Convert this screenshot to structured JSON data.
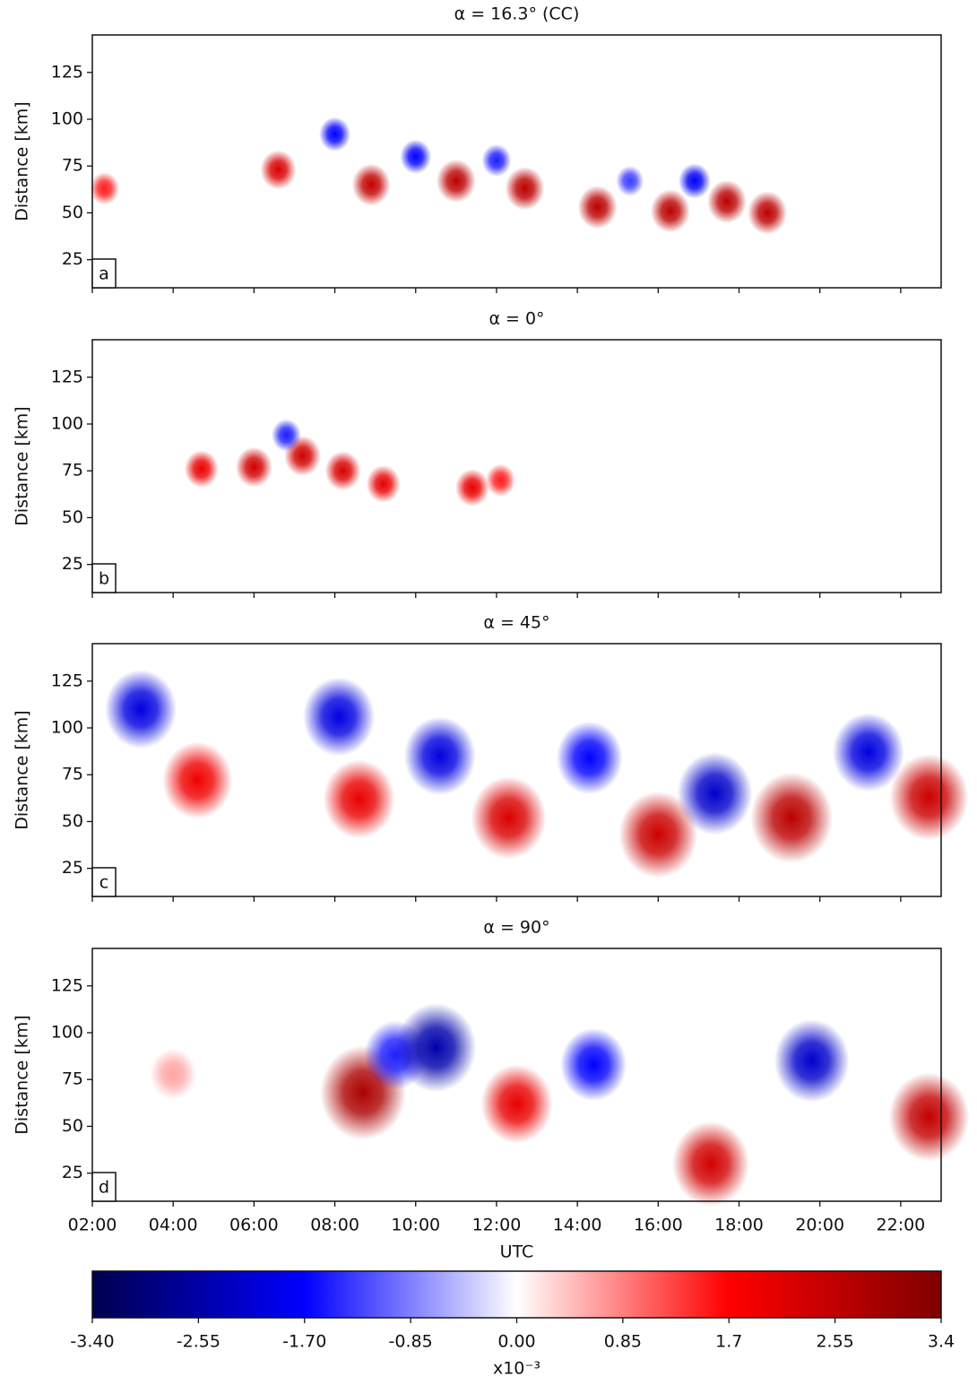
{
  "chart_data": [
    {
      "type": "vortex-field",
      "title": "α = 16.3° (CC)",
      "panel_label": "a",
      "ylabel": "Distance [km]",
      "xlim": [
        2,
        23
      ],
      "ylim": [
        10,
        145
      ],
      "colormap": "seismic",
      "clim": [
        -3.4,
        3.4
      ],
      "xticks": [
        {
          "value": 2,
          "label": "02:00"
        },
        {
          "value": 4,
          "label": "04:00"
        },
        {
          "value": 6,
          "label": "06:00"
        },
        {
          "value": 8,
          "label": "08:00"
        },
        {
          "value": 10,
          "label": "10:00"
        },
        {
          "value": 12,
          "label": "12:00"
        },
        {
          "value": 14,
          "label": "14:00"
        },
        {
          "value": 16,
          "label": "16:00"
        },
        {
          "value": 18,
          "label": "18:00"
        },
        {
          "value": 20,
          "label": "20:00"
        },
        {
          "value": 22,
          "label": "22:00"
        }
      ],
      "yticks": [
        25,
        50,
        75,
        100,
        125
      ],
      "x": [
        2.3,
        6.6,
        8.9,
        11.0,
        12.7,
        14.5,
        16.3,
        17.7,
        18.7,
        8.0,
        10.0,
        12.0,
        15.3,
        16.9
      ],
      "y": [
        63,
        73,
        65,
        67,
        63,
        53,
        51,
        56,
        50,
        92,
        80,
        78,
        67,
        67
      ],
      "values": [
        1.5,
        2.2,
        2.5,
        2.6,
        2.6,
        2.6,
        2.6,
        2.6,
        2.6,
        -1.7,
        -1.7,
        -1.5,
        -1.3,
        -1.8
      ]
    },
    {
      "type": "vortex-field",
      "title": "α = 0°",
      "panel_label": "b",
      "ylabel": "Distance [km]",
      "xlim": [
        2,
        23
      ],
      "ylim": [
        10,
        145
      ],
      "colormap": "seismic",
      "clim": [
        -3.4,
        3.4
      ],
      "xticks": [
        {
          "value": 2,
          "label": "02:00"
        },
        {
          "value": 4,
          "label": "04:00"
        },
        {
          "value": 6,
          "label": "06:00"
        },
        {
          "value": 8,
          "label": "08:00"
        },
        {
          "value": 10,
          "label": "10:00"
        },
        {
          "value": 12,
          "label": "12:00"
        },
        {
          "value": 14,
          "label": "14:00"
        },
        {
          "value": 16,
          "label": "16:00"
        },
        {
          "value": 18,
          "label": "18:00"
        },
        {
          "value": 20,
          "label": "20:00"
        },
        {
          "value": 22,
          "label": "22:00"
        }
      ],
      "yticks": [
        25,
        50,
        75,
        100,
        125
      ],
      "x": [
        4.7,
        6.0,
        7.2,
        8.2,
        9.2,
        11.4,
        12.1,
        6.8
      ],
      "y": [
        76,
        77,
        83,
        75,
        68,
        66,
        70,
        94
      ],
      "values": [
        2.0,
        2.3,
        2.3,
        2.2,
        2.0,
        2.0,
        1.5,
        -1.5
      ]
    },
    {
      "type": "vortex-field",
      "title": "α = 45°",
      "panel_label": "c",
      "ylabel": "Distance [km]",
      "xlim": [
        2,
        23
      ],
      "ylim": [
        10,
        145
      ],
      "colormap": "seismic",
      "clim": [
        -3.4,
        3.4
      ],
      "xticks": [
        {
          "value": 2,
          "label": "02:00"
        },
        {
          "value": 4,
          "label": "04:00"
        },
        {
          "value": 6,
          "label": "06:00"
        },
        {
          "value": 8,
          "label": "08:00"
        },
        {
          "value": 10,
          "label": "10:00"
        },
        {
          "value": 12,
          "label": "12:00"
        },
        {
          "value": 14,
          "label": "14:00"
        },
        {
          "value": 16,
          "label": "16:00"
        },
        {
          "value": 18,
          "label": "18:00"
        },
        {
          "value": 20,
          "label": "20:00"
        },
        {
          "value": 22,
          "label": "22:00"
        }
      ],
      "yticks": [
        25,
        50,
        75,
        100,
        125
      ],
      "x": [
        3.2,
        8.1,
        10.6,
        14.3,
        17.4,
        21.2,
        4.6,
        8.6,
        12.3,
        16.0,
        19.3,
        22.7
      ],
      "y": [
        110,
        106,
        85,
        84,
        65,
        87,
        72,
        62,
        52,
        43,
        52,
        63
      ],
      "values": [
        -2.0,
        -2.0,
        -2.0,
        -1.7,
        -2.2,
        -2.0,
        1.9,
        2.0,
        2.2,
        2.4,
        2.6,
        2.4
      ]
    },
    {
      "type": "vortex-field",
      "title": "α = 90°",
      "panel_label": "d",
      "ylabel": "Distance [km]",
      "xlabel": "UTC",
      "xlim": [
        2,
        23
      ],
      "ylim": [
        10,
        145
      ],
      "colormap": "seismic",
      "clim": [
        -3.4,
        3.4
      ],
      "xticks": [
        {
          "value": 2,
          "label": "02:00"
        },
        {
          "value": 4,
          "label": "04:00"
        },
        {
          "value": 6,
          "label": "06:00"
        },
        {
          "value": 8,
          "label": "08:00"
        },
        {
          "value": 10,
          "label": "10:00"
        },
        {
          "value": 12,
          "label": "12:00"
        },
        {
          "value": 14,
          "label": "14:00"
        },
        {
          "value": 16,
          "label": "16:00"
        },
        {
          "value": 18,
          "label": "18:00"
        },
        {
          "value": 20,
          "label": "20:00"
        },
        {
          "value": 22,
          "label": "22:00"
        }
      ],
      "yticks": [
        25,
        50,
        75,
        100,
        125
      ],
      "x": [
        4.0,
        8.7,
        12.5,
        17.3,
        22.7,
        9.5,
        10.5,
        14.4,
        19.8
      ],
      "y": [
        78,
        68,
        62,
        30,
        55,
        88,
        92,
        83,
        85
      ],
      "values": [
        0.6,
        2.8,
        2.0,
        2.3,
        2.5,
        -1.5,
        -2.5,
        -1.7,
        -2.2
      ]
    },
    {
      "type": "colorbar",
      "colormap": "seismic",
      "xlim": [
        -3.4,
        3.4
      ],
      "xlabel": "x10⁻³",
      "xticks": [
        {
          "value": -3.4,
          "label": "-3.40"
        },
        {
          "value": -2.55,
          "label": "-2.55"
        },
        {
          "value": -1.7,
          "label": "-1.70"
        },
        {
          "value": -0.85,
          "label": "-0.85"
        },
        {
          "value": 0,
          "label": "0.00"
        },
        0.85,
        1.7,
        2.55,
        3.4
      ]
    }
  ]
}
